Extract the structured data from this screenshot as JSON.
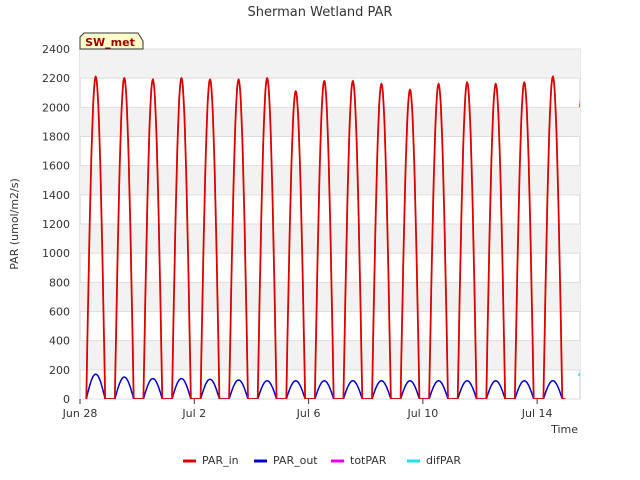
{
  "chart_data": {
    "type": "line",
    "title": "Sherman Wetland PAR",
    "xlabel": "Time",
    "ylabel": "PAR (umol/m2/s)",
    "ylim": [
      0,
      2400
    ],
    "yticks": [
      0,
      200,
      400,
      600,
      800,
      1000,
      1200,
      1400,
      1600,
      1800,
      2000,
      2200,
      2400
    ],
    "xlim_days": [
      0,
      17.5
    ],
    "xticks": [
      {
        "day": 0,
        "label": "Jun 28"
      },
      {
        "day": 4,
        "label": "Jul 2"
      },
      {
        "day": 8,
        "label": "Jul 6"
      },
      {
        "day": 12,
        "label": "Jul 10"
      },
      {
        "day": 16,
        "label": "Jul 14"
      }
    ],
    "site_badge": "SW_met",
    "grid": true,
    "legend_position": "bottom",
    "daily_peaks": {
      "days": [
        "Jun 28",
        "Jun 29",
        "Jun 30",
        "Jul 1",
        "Jul 2",
        "Jul 3",
        "Jul 4",
        "Jul 5",
        "Jul 6",
        "Jul 7",
        "Jul 8",
        "Jul 9",
        "Jul 10",
        "Jul 11",
        "Jul 12",
        "Jul 13",
        "Jul 14",
        "Jul 15"
      ],
      "PAR_in": [
        2210,
        2200,
        2190,
        2200,
        2190,
        2190,
        2200,
        2110,
        2180,
        2180,
        2160,
        2120,
        2160,
        2170,
        2160,
        2170,
        2210,
        2060
      ],
      "PAR_out": [
        170,
        150,
        140,
        140,
        135,
        130,
        125,
        125,
        125,
        125,
        125,
        125,
        125,
        125,
        125,
        125,
        125,
        0
      ]
    },
    "series": [
      {
        "name": "PAR_in",
        "color": "#dd0000"
      },
      {
        "name": "PAR_out",
        "color": "#0000cc"
      },
      {
        "name": "totPAR",
        "color": "#ee00ee"
      },
      {
        "name": "difPAR",
        "color": "#22ddee"
      }
    ]
  }
}
